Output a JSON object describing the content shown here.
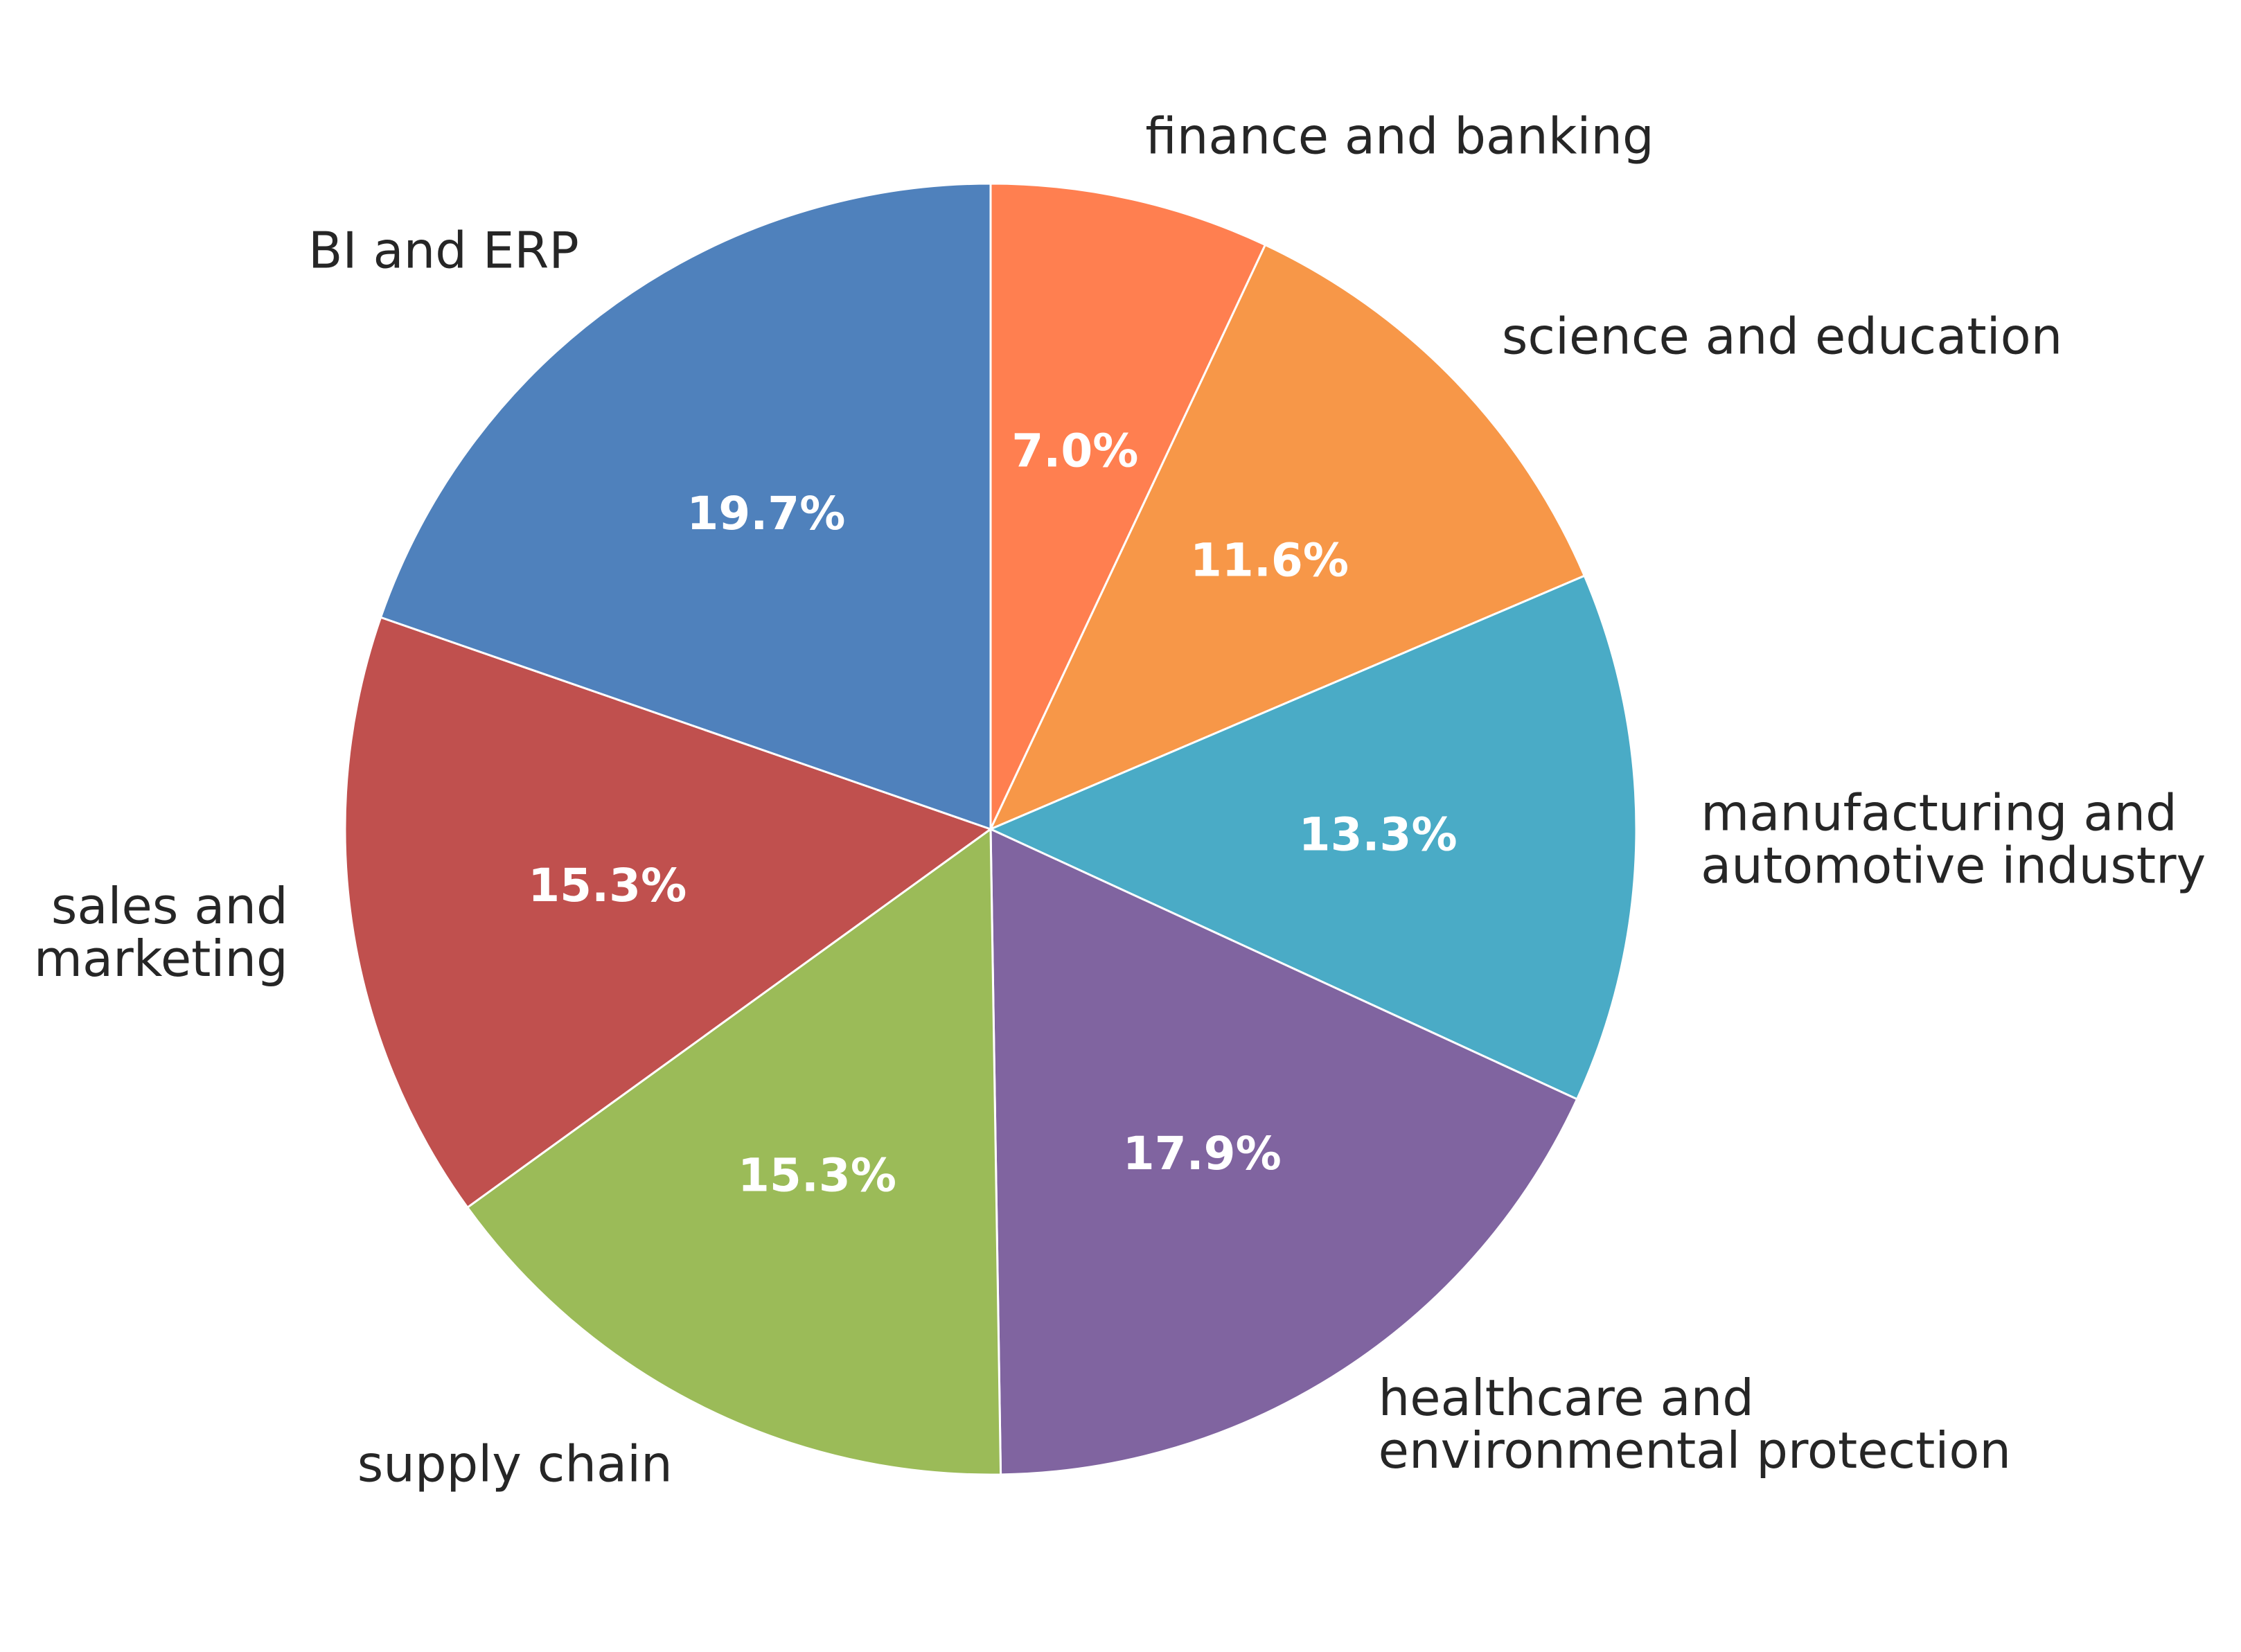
{
  "chart_data": {
    "type": "pie",
    "start_angle_deg": 90,
    "direction": "clockwise",
    "slices": [
      {
        "label": [
          "finance and banking"
        ],
        "value": 7.0,
        "pct_text": "7.0%",
        "color": "#ff7f50"
      },
      {
        "label": [
          "science and education"
        ],
        "value": 11.6,
        "pct_text": "11.6%",
        "color": "#f79748"
      },
      {
        "label": [
          "manufacturing and",
          "automotive industry"
        ],
        "value": 13.3,
        "pct_text": "13.3%",
        "color": "#4aabc6"
      },
      {
        "label": [
          "healthcare and",
          "environmental protection"
        ],
        "value": 17.9,
        "pct_text": "17.9%",
        "color": "#8064a0"
      },
      {
        "label": [
          "supply chain"
        ],
        "value": 15.3,
        "pct_text": "15.3%",
        "color": "#9bbb58"
      },
      {
        "label": [
          "sales and",
          "marketing"
        ],
        "value": 15.3,
        "pct_text": "15.3%",
        "color": "#c0504e"
      },
      {
        "label": [
          "BI and ERP"
        ],
        "value": 19.7,
        "pct_text": "19.7%",
        "color": "#4f81bc"
      }
    ],
    "title": "",
    "legend": "none"
  }
}
